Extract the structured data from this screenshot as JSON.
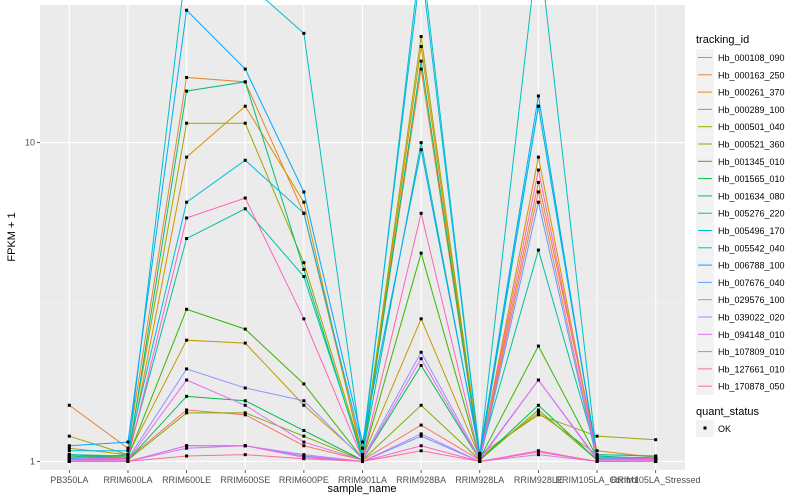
{
  "chart_data": {
    "type": "line",
    "title": "",
    "xlabel": "sample_name",
    "ylabel": "FPKM + 1",
    "y_scale": "log10",
    "ylim": [
      0.94,
      27
    ],
    "y_ticks": [
      1,
      10
    ],
    "grid": true,
    "legend_position": "right",
    "categories": [
      "PB350LA",
      "RRIM600LA",
      "RRIM600LE",
      "RRIM600SE",
      "RRIM600PE",
      "RRIM901LA",
      "RRIM928BA",
      "RRIM928LA",
      "RRIM928LE",
      "RRIM105LA_Control",
      "RRIM105LA_Stressed"
    ],
    "legend_title": "tracking_id",
    "marker_legend_title": "quant_status",
    "marker_legend_label": "OK",
    "series": [
      {
        "name": "Hb_000108_090",
        "color": "#F8766D",
        "values": [
          1.03,
          1.02,
          1.45,
          1.4,
          1.12,
          1.01,
          1.3,
          1.01,
          7.0,
          1.02,
          1.02
        ]
      },
      {
        "name": "Hb_000163_250",
        "color": "#EA8331",
        "values": [
          1.5,
          1.1,
          16.0,
          15.5,
          6.0,
          1.05,
          17.0,
          1.02,
          7.5,
          1.08,
          1.03
        ]
      },
      {
        "name": "Hb_000261_370",
        "color": "#D89000",
        "values": [
          1.05,
          1.02,
          9.0,
          13.0,
          6.5,
          1.02,
          20.0,
          1.02,
          9.0,
          1.03,
          1.02
        ]
      },
      {
        "name": "Hb_000289_100",
        "color": "#C09B00",
        "values": [
          1.1,
          1.05,
          2.4,
          2.35,
          1.5,
          1.03,
          2.8,
          1.03,
          1.42,
          1.05,
          1.04
        ]
      },
      {
        "name": "Hb_000501_040",
        "color": "#A3A500",
        "values": [
          1.2,
          1.05,
          11.5,
          11.5,
          4.2,
          1.05,
          21.5,
          1.05,
          1.4,
          1.2,
          1.17
        ]
      },
      {
        "name": "Hb_000521_360",
        "color": "#7CAE00",
        "values": [
          1.02,
          1.01,
          1.42,
          1.42,
          1.2,
          1.01,
          1.5,
          1.01,
          1.45,
          1.01,
          1.01
        ]
      },
      {
        "name": "Hb_001345_010",
        "color": "#39B600",
        "values": [
          1.05,
          1.03,
          3.0,
          2.6,
          1.75,
          1.02,
          4.5,
          1.02,
          2.3,
          1.03,
          1.02
        ]
      },
      {
        "name": "Hb_001565_010",
        "color": "#00BB4E",
        "values": [
          1.02,
          1.01,
          1.6,
          1.55,
          1.25,
          1.01,
          2.0,
          1.01,
          1.5,
          1.01,
          1.01
        ]
      },
      {
        "name": "Hb_001634_080",
        "color": "#00BF7D",
        "values": [
          1.04,
          1.02,
          14.5,
          15.5,
          4.0,
          1.02,
          18.0,
          1.02,
          13.0,
          1.04,
          1.02
        ]
      },
      {
        "name": "Hb_005276_220",
        "color": "#00C1A3",
        "values": [
          1.05,
          1.04,
          5.0,
          6.2,
          3.8,
          1.04,
          10.0,
          1.04,
          4.6,
          1.05,
          1.04
        ]
      },
      {
        "name": "Hb_005496_170",
        "color": "#00BFC4",
        "values": [
          1.02,
          1.05,
          37.0,
          32.0,
          22.0,
          1.05,
          40.0,
          1.05,
          43.0,
          1.02,
          1.02
        ]
      },
      {
        "name": "Hb_005542_040",
        "color": "#00B8E7",
        "values": [
          1.08,
          1.08,
          6.5,
          8.8,
          6.0,
          1.1,
          36.0,
          1.05,
          13.0,
          1.03,
          1.03
        ]
      },
      {
        "name": "Hb_006788_100",
        "color": "#00A9FF",
        "values": [
          1.12,
          1.15,
          26.0,
          17.0,
          7.0,
          1.15,
          9.5,
          1.06,
          14.0,
          1.02,
          1.02
        ]
      },
      {
        "name": "Hb_007676_040",
        "color": "#619CFF",
        "values": [
          1.0,
          1.0,
          1.12,
          1.12,
          1.04,
          1.0,
          1.2,
          1.0,
          6.5,
          1.0,
          1.0
        ]
      },
      {
        "name": "Hb_029576_100",
        "color": "#9590FF",
        "values": [
          1.02,
          1.02,
          1.95,
          1.7,
          1.55,
          1.02,
          2.2,
          1.02,
          1.8,
          1.02,
          1.01
        ]
      },
      {
        "name": "Hb_039022_020",
        "color": "#C77CFF",
        "values": [
          1.0,
          1.0,
          1.1,
          1.12,
          1.05,
          1.0,
          1.22,
          1.0,
          1.05,
          1.0,
          1.0
        ]
      },
      {
        "name": "Hb_094148_010",
        "color": "#E76BF3",
        "values": [
          1.01,
          1.01,
          1.8,
          1.5,
          1.15,
          1.01,
          2.1,
          1.01,
          1.8,
          1.01,
          1.01
        ]
      },
      {
        "name": "Hb_107809_010",
        "color": "#FA62DB",
        "values": [
          1.0,
          1.0,
          1.12,
          1.12,
          1.03,
          1.0,
          1.12,
          1.0,
          1.08,
          1.0,
          1.0
        ]
      },
      {
        "name": "Hb_127661_010",
        "color": "#FF62BC",
        "values": [
          1.03,
          1.02,
          5.8,
          6.7,
          2.8,
          1.02,
          6.0,
          1.02,
          8.2,
          1.03,
          1.02
        ]
      },
      {
        "name": "Hb_170878_050",
        "color": "#FF6C91",
        "values": [
          1.0,
          1.0,
          1.04,
          1.05,
          1.02,
          1.0,
          1.08,
          1.0,
          1.07,
          1.0,
          1.0
        ]
      }
    ]
  }
}
